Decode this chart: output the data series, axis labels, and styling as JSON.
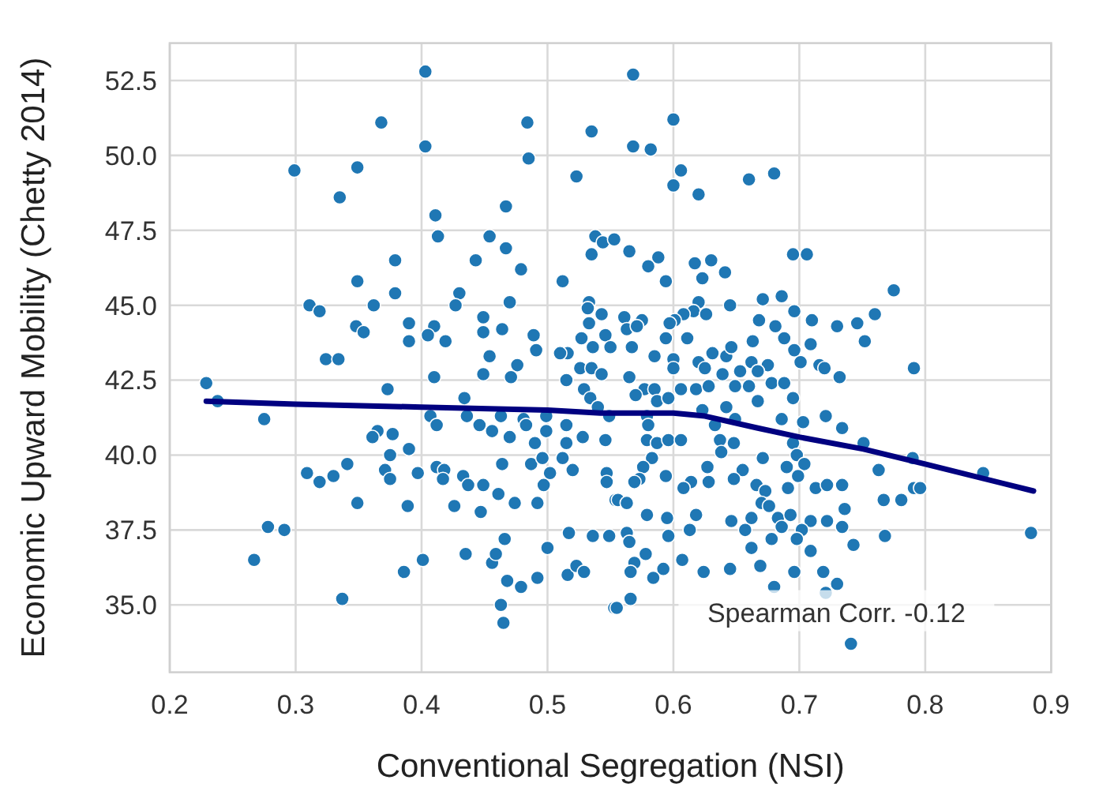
{
  "chart_data": {
    "type": "scatter",
    "xlabel": "Conventional Segregation (NSI)",
    "ylabel": "Economic Upward Mobility (Chetty 2014)",
    "xlim": [
      0.2,
      0.9
    ],
    "ylim": [
      32.75,
      53.75
    ],
    "xticks": [
      0.2,
      0.3,
      0.4,
      0.5,
      0.6,
      0.7,
      0.8,
      0.9
    ],
    "yticks": [
      {
        "value": 35,
        "label": "35.0"
      },
      {
        "value": 37.5,
        "label": "37.5"
      },
      {
        "value": 40,
        "label": "40.0"
      },
      {
        "value": 42.5,
        "label": "42.5"
      },
      {
        "value": 45,
        "label": "45.0"
      },
      {
        "value": 47.5,
        "label": "47.5"
      },
      {
        "value": 50,
        "label": "50.0"
      },
      {
        "value": 52.5,
        "label": "52.5"
      }
    ],
    "grid": true,
    "annotations": [
      "Spearman Corr. -0.12"
    ],
    "series": [
      {
        "marker": "circle",
        "color": "#1f77b4",
        "x": [
          0.403,
          0.368,
          0.484,
          0.535,
          0.403,
          0.485,
          0.299,
          0.349,
          0.523,
          0.335,
          0.411,
          0.467,
          0.413,
          0.454,
          0.538,
          0.544,
          0.553,
          0.467,
          0.379,
          0.443,
          0.535,
          0.479,
          0.349,
          0.512,
          0.379,
          0.43,
          0.311,
          0.319,
          0.362,
          0.427,
          0.47,
          0.533,
          0.532,
          0.543,
          0.39,
          0.41,
          0.449,
          0.533,
          0.348,
          0.568,
          0.6,
          0.568,
          0.582,
          0.606,
          0.6,
          0.62,
          0.66,
          0.68,
          0.565,
          0.588,
          0.58,
          0.594,
          0.617,
          0.63,
          0.623,
          0.641,
          0.695,
          0.706,
          0.775,
          0.62,
          0.645,
          0.671,
          0.686,
          0.616,
          0.608,
          0.626,
          0.696,
          0.561,
          0.575,
          0.601,
          0.668,
          0.71,
          0.73,
          0.746,
          0.76,
          0.354,
          0.39,
          0.405,
          0.419,
          0.449,
          0.464,
          0.489,
          0.491,
          0.324,
          0.334,
          0.454,
          0.476,
          0.449,
          0.471,
          0.41,
          0.229,
          0.373,
          0.238,
          0.275,
          0.434,
          0.407,
          0.412,
          0.436,
          0.446,
          0.456,
          0.463,
          0.47,
          0.481,
          0.483,
          0.49,
          0.499,
          0.499,
          0.365,
          0.361,
          0.377,
          0.375,
          0.39,
          0.309,
          0.319,
          0.33,
          0.341,
          0.371,
          0.375,
          0.397,
          0.412,
          0.418,
          0.417,
          0.433,
          0.437,
          0.449,
          0.464,
          0.487,
          0.496,
          0.502,
          0.497,
          0.461,
          0.474,
          0.492,
          0.426,
          0.389,
          0.349,
          0.447,
          0.278,
          0.291,
          0.267,
          0.337,
          0.386,
          0.401,
          0.435,
          0.456,
          0.459,
          0.466,
          0.468,
          0.479,
          0.492,
          0.5,
          0.463,
          0.465,
          0.517,
          0.536,
          0.549,
          0.516,
          0.523,
          0.529,
          0.553,
          0.515,
          0.529,
          0.534,
          0.54,
          0.549,
          0.515,
          0.528,
          0.546,
          0.515,
          0.512,
          0.52,
          0.547,
          0.547,
          0.554,
          0.527,
          0.546,
          0.536,
          0.55,
          0.516,
          0.51,
          0.526,
          0.535,
          0.543,
          0.563,
          0.571,
          0.597,
          0.594,
          0.611,
          0.567,
          0.585,
          0.6,
          0.62,
          0.631,
          0.642,
          0.646,
          0.663,
          0.681,
          0.688,
          0.696,
          0.709,
          0.752,
          0.662,
          0.675,
          0.701,
          0.716,
          0.72,
          0.791,
          0.732,
          0.6,
          0.625,
          0.639,
          0.653,
          0.667,
          0.565,
          0.577,
          0.585,
          0.606,
          0.618,
          0.628,
          0.649,
          0.66,
          0.678,
          0.688,
          0.57,
          0.587,
          0.596,
          0.623,
          0.642,
          0.667,
          0.695,
          0.579,
          0.649,
          0.686,
          0.721,
          0.703,
          0.633,
          0.58,
          0.734,
          0.579,
          0.587,
          0.596,
          0.606,
          0.637,
          0.648,
          0.695,
          0.751,
          0.638,
          0.698,
          0.583,
          0.671,
          0.79,
          0.576,
          0.627,
          0.655,
          0.69,
          0.704,
          0.763,
          0.846,
          0.573,
          0.594,
          0.569,
          0.614,
          0.628,
          0.648,
          0.699,
          0.666,
          0.691,
          0.713,
          0.722,
          0.734,
          0.791,
          0.796,
          0.608,
          0.673,
          0.556,
          0.563,
          0.67,
          0.676,
          0.767,
          0.781,
          0.736,
          0.579,
          0.595,
          0.618,
          0.646,
          0.662,
          0.683,
          0.693,
          0.709,
          0.722,
          0.734,
          0.613,
          0.657,
          0.686,
          0.702,
          0.563,
          0.596,
          0.678,
          0.698,
          0.768,
          0.884,
          0.743,
          0.565,
          0.578,
          0.662,
          0.709,
          0.607,
          0.569,
          0.566,
          0.592,
          0.584,
          0.624,
          0.645,
          0.669,
          0.696,
          0.719,
          0.68,
          0.73,
          0.721,
          0.566,
          0.555,
          0.741
        ],
        "values": [
          52.8,
          51.1,
          51.1,
          50.8,
          50.3,
          49.9,
          49.5,
          49.6,
          49.3,
          48.6,
          48.0,
          48.3,
          47.3,
          47.3,
          47.3,
          47.1,
          47.2,
          46.9,
          46.5,
          46.5,
          46.7,
          46.2,
          45.8,
          45.8,
          45.4,
          45.4,
          45.0,
          44.8,
          45.0,
          45.0,
          45.1,
          45.1,
          44.9,
          44.7,
          44.4,
          44.3,
          44.6,
          44.4,
          44.3,
          52.7,
          51.2,
          50.3,
          50.2,
          49.5,
          49.0,
          48.7,
          49.2,
          49.4,
          46.8,
          46.6,
          46.3,
          45.8,
          46.4,
          46.5,
          45.9,
          46.1,
          46.7,
          46.7,
          45.5,
          45.1,
          45.0,
          45.2,
          45.3,
          44.8,
          44.7,
          44.7,
          44.8,
          44.6,
          44.5,
          44.5,
          44.5,
          44.5,
          44.3,
          44.4,
          44.7,
          44.1,
          43.8,
          44.0,
          43.8,
          44.1,
          44.2,
          44.0,
          43.5,
          43.2,
          43.2,
          43.3,
          43.0,
          42.7,
          42.6,
          42.6,
          42.4,
          42.2,
          41.8,
          41.2,
          41.9,
          41.3,
          41.0,
          41.3,
          41.0,
          40.8,
          41.3,
          40.6,
          41.2,
          41.0,
          40.4,
          41.3,
          40.8,
          40.8,
          40.6,
          40.7,
          40.0,
          40.2,
          39.4,
          39.1,
          39.3,
          39.7,
          39.5,
          39.2,
          39.4,
          39.6,
          39.5,
          39.2,
          39.3,
          39.0,
          39.0,
          39.7,
          39.7,
          39.9,
          39.4,
          39.0,
          38.7,
          38.4,
          38.4,
          38.3,
          38.3,
          38.4,
          38.1,
          37.6,
          37.5,
          36.5,
          35.2,
          36.1,
          36.5,
          36.7,
          36.4,
          36.7,
          37.2,
          35.8,
          35.6,
          35.9,
          36.9,
          35.0,
          34.4,
          37.4,
          37.3,
          37.3,
          36.0,
          36.3,
          36.1,
          34.9,
          42.5,
          42.2,
          41.9,
          41.6,
          41.3,
          41.0,
          40.6,
          40.5,
          40.4,
          39.9,
          39.5,
          39.4,
          39.1,
          38.5,
          43.9,
          44.0,
          43.6,
          43.6,
          43.4,
          43.4,
          42.9,
          42.9,
          42.7,
          44.2,
          44.3,
          44.4,
          43.9,
          43.9,
          43.6,
          43.3,
          43.2,
          43.1,
          43.4,
          43.3,
          43.6,
          43.8,
          44.3,
          43.9,
          43.5,
          43.7,
          43.8,
          43.1,
          43.0,
          43.1,
          43.0,
          42.9,
          42.9,
          42.6,
          42.9,
          42.9,
          42.7,
          42.8,
          42.8,
          42.6,
          42.2,
          42.2,
          42.2,
          42.2,
          42.3,
          42.3,
          42.3,
          42.4,
          42.4,
          42.0,
          41.8,
          41.9,
          41.5,
          41.6,
          41.8,
          41.9,
          41.3,
          41.2,
          41.2,
          41.3,
          41.1,
          41.0,
          41.0,
          40.9,
          40.5,
          40.4,
          40.5,
          40.5,
          40.5,
          40.4,
          40.4,
          40.4,
          40.1,
          40.0,
          39.9,
          39.9,
          39.9,
          39.6,
          39.6,
          39.5,
          39.6,
          39.7,
          39.5,
          39.4,
          39.2,
          39.3,
          39.1,
          39.1,
          39.1,
          39.2,
          39.3,
          39.0,
          38.9,
          38.9,
          39.0,
          39.0,
          38.9,
          38.9,
          38.9,
          38.8,
          38.5,
          38.4,
          38.4,
          38.3,
          38.5,
          38.5,
          38.2,
          38.0,
          37.9,
          38.0,
          37.8,
          37.9,
          37.9,
          38.0,
          37.8,
          37.8,
          37.6,
          37.5,
          37.5,
          37.6,
          37.5,
          37.4,
          37.3,
          37.2,
          37.2,
          37.3,
          37.4,
          37.0,
          37.1,
          36.7,
          36.9,
          36.8,
          36.5,
          36.4,
          36.1,
          36.2,
          35.9,
          36.1,
          36.2,
          36.3,
          36.1,
          36.1,
          35.6,
          35.7,
          35.4,
          35.2,
          34.9,
          33.7
        ]
      },
      {
        "type": "line",
        "color": "#000080",
        "x": [
          0.229,
          0.3,
          0.4,
          0.5,
          0.542,
          0.6,
          0.625,
          0.667,
          0.7,
          0.751,
          0.8,
          0.886
        ],
        "values": [
          41.8,
          41.7,
          41.6,
          41.5,
          41.4,
          41.4,
          41.3,
          40.9,
          40.6,
          40.2,
          39.7,
          38.8
        ]
      }
    ]
  }
}
